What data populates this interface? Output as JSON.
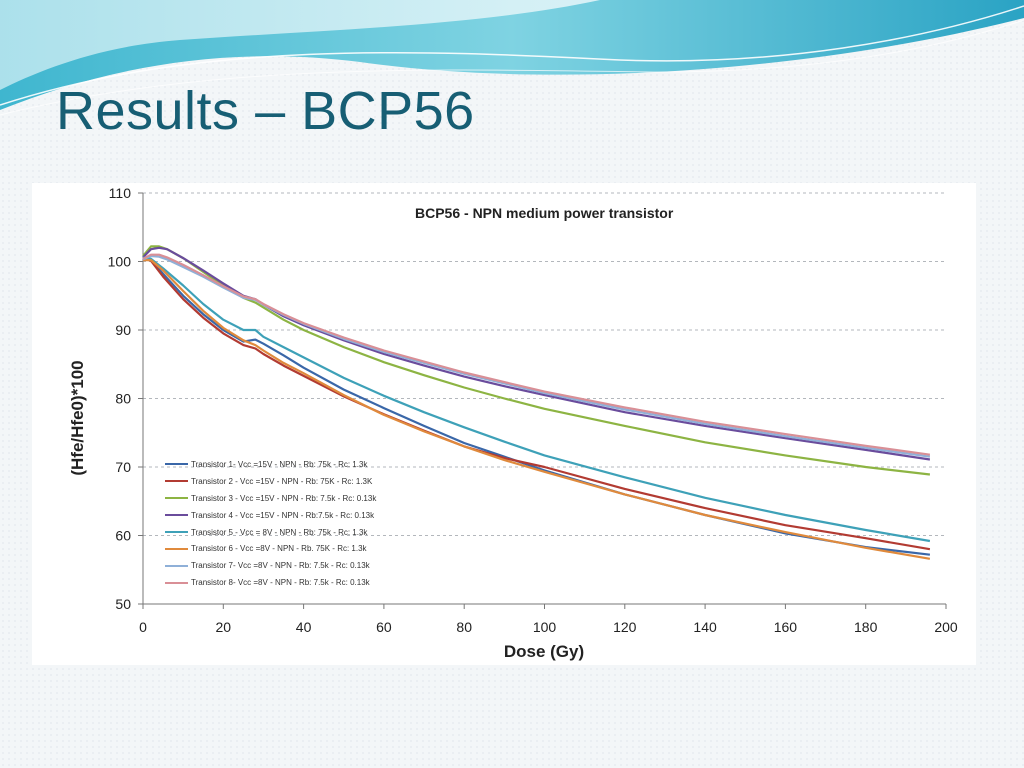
{
  "slide": {
    "title": "Results – BCP56",
    "background_color": "#f3f6f8",
    "accent_color": "#175e74"
  },
  "chart_data": {
    "type": "line",
    "title": "BCP56 - NPN medium power transistor",
    "xlabel": "Dose (Gy)",
    "ylabel": "(Hfe/Hfe0)*100",
    "xlim": [
      0,
      200
    ],
    "ylim": [
      50,
      110
    ],
    "x_ticks": [
      "0",
      "20",
      "40",
      "60",
      "80",
      "100",
      "120",
      "140",
      "160",
      "180",
      "200"
    ],
    "y_ticks": [
      "50",
      "60",
      "70",
      "80",
      "90",
      "100",
      "110"
    ],
    "grid": "horizontal dashed",
    "legend_position": "lower-left",
    "series": [
      {
        "name": "Transistor 1- Vcc =15V - NPN - Rb: 75k - Rc: 1.3k",
        "color": "#3a67a8",
        "x": [
          0,
          2,
          5,
          10,
          15,
          20,
          25,
          28,
          30,
          35,
          40,
          50,
          60,
          70,
          80,
          90,
          100,
          120,
          140,
          160,
          180,
          196
        ],
        "y": [
          100.5,
          100.2,
          98.2,
          95,
          92.3,
          90,
          88.3,
          88.6,
          88,
          86.3,
          84.5,
          81.3,
          78.6,
          76,
          73.5,
          71.5,
          69.5,
          66,
          63,
          60.3,
          58.3,
          57.2
        ]
      },
      {
        "name": "Transistor 2 - Vcc =15V - NPN - Rb: 75K - Rc: 1.3K",
        "color": "#b23b32",
        "x": [
          0,
          2,
          5,
          10,
          15,
          20,
          25,
          28,
          30,
          35,
          40,
          50,
          60,
          70,
          80,
          90,
          100,
          120,
          140,
          160,
          180,
          196
        ],
        "y": [
          100.5,
          100.1,
          97.8,
          94.5,
          91.8,
          89.5,
          87.8,
          87.3,
          86.5,
          84.8,
          83.3,
          80.3,
          77.7,
          75.3,
          73,
          71.3,
          70,
          66.8,
          64,
          61.5,
          59.6,
          58
        ]
      },
      {
        "name": "Transistor 3 - Vcc =15V - NPN - Rb: 7.5k - Rc: 0.13k",
        "color": "#8db443",
        "x": [
          0,
          2,
          4,
          6,
          10,
          15,
          20,
          25,
          28,
          30,
          35,
          40,
          50,
          60,
          70,
          80,
          90,
          100,
          120,
          140,
          160,
          180,
          196
        ],
        "y": [
          100.8,
          102.2,
          102.2,
          101.8,
          100.5,
          98.5,
          96.5,
          94.7,
          94,
          93.3,
          91.5,
          90,
          87.5,
          85.3,
          83.4,
          81.6,
          80,
          78.5,
          76,
          73.6,
          71.7,
          70,
          68.9
        ]
      },
      {
        "name": "Transistor 4 - Vcc =15V - NPN - Rb:7.5k - Rc: 0.13k",
        "color": "#6a4c9c",
        "x": [
          0,
          2,
          4,
          6,
          10,
          15,
          20,
          25,
          28,
          30,
          35,
          40,
          50,
          60,
          70,
          80,
          90,
          100,
          120,
          140,
          160,
          180,
          196
        ],
        "y": [
          100.6,
          101.8,
          102,
          101.8,
          100.5,
          98.7,
          96.8,
          95,
          94.5,
          93.7,
          92,
          90.7,
          88.5,
          86.5,
          84.8,
          83.2,
          81.8,
          80.5,
          78,
          76,
          74.2,
          72.5,
          71.1
        ]
      },
      {
        "name": "Transistor 5 - Vcc = 8V - NPN - Rb: 75k - Rc: 1.3k",
        "color": "#3ea1b8",
        "x": [
          0,
          2,
          5,
          10,
          15,
          20,
          25,
          28,
          30,
          35,
          40,
          50,
          60,
          70,
          80,
          90,
          100,
          120,
          140,
          160,
          180,
          196
        ],
        "y": [
          100.6,
          100.4,
          99,
          96.5,
          93.8,
          91.5,
          90,
          90,
          89,
          87.5,
          86,
          83,
          80.4,
          78,
          75.8,
          73.7,
          71.7,
          68.5,
          65.5,
          63,
          60.8,
          59.2
        ]
      },
      {
        "name": "Transistor 6 - Vcc =8V - NPN - Rb. 75K - Rc: 1.3k",
        "color": "#e08a3c",
        "x": [
          0,
          2,
          5,
          10,
          15,
          20,
          25,
          28,
          30,
          35,
          40,
          50,
          60,
          70,
          80,
          90,
          100,
          120,
          140,
          160,
          180,
          196
        ],
        "y": [
          100.2,
          100.2,
          98.7,
          95.7,
          92.8,
          90.3,
          88.5,
          87.8,
          87,
          85.2,
          83.7,
          80.5,
          77.6,
          75.2,
          73,
          71,
          69.3,
          66,
          63,
          60.5,
          58.2,
          56.6
        ]
      },
      {
        "name": "Transistor 7- Vcc =8V - NPN - Rb: 7.5k - Rc: 0.13k",
        "color": "#8fb0d8",
        "x": [
          0,
          2,
          4,
          6,
          10,
          15,
          20,
          25,
          28,
          30,
          35,
          40,
          50,
          60,
          70,
          80,
          90,
          100,
          120,
          140,
          160,
          180,
          196
        ],
        "y": [
          100.3,
          100.8,
          100.7,
          100.3,
          99.2,
          97.8,
          96.2,
          94.7,
          94.4,
          93.7,
          92.2,
          90.9,
          88.7,
          86.8,
          85.2,
          83.6,
          82.2,
          80.8,
          78.4,
          76.3,
          74.5,
          72.8,
          71.5
        ]
      },
      {
        "name": "Transistor 8- Vcc =8V - NPN - Rb: 7.5k - Rc: 0.13k",
        "color": "#d98f96",
        "x": [
          0,
          2,
          4,
          6,
          10,
          15,
          20,
          25,
          28,
          30,
          35,
          40,
          50,
          60,
          70,
          80,
          90,
          100,
          120,
          140,
          160,
          180,
          196
        ],
        "y": [
          100.4,
          101,
          101,
          100.6,
          99.5,
          98,
          96.4,
          94.9,
          94.5,
          93.8,
          92.3,
          91,
          88.9,
          87,
          85.4,
          83.8,
          82.4,
          81,
          78.7,
          76.6,
          74.8,
          73.1,
          71.8
        ]
      }
    ]
  }
}
